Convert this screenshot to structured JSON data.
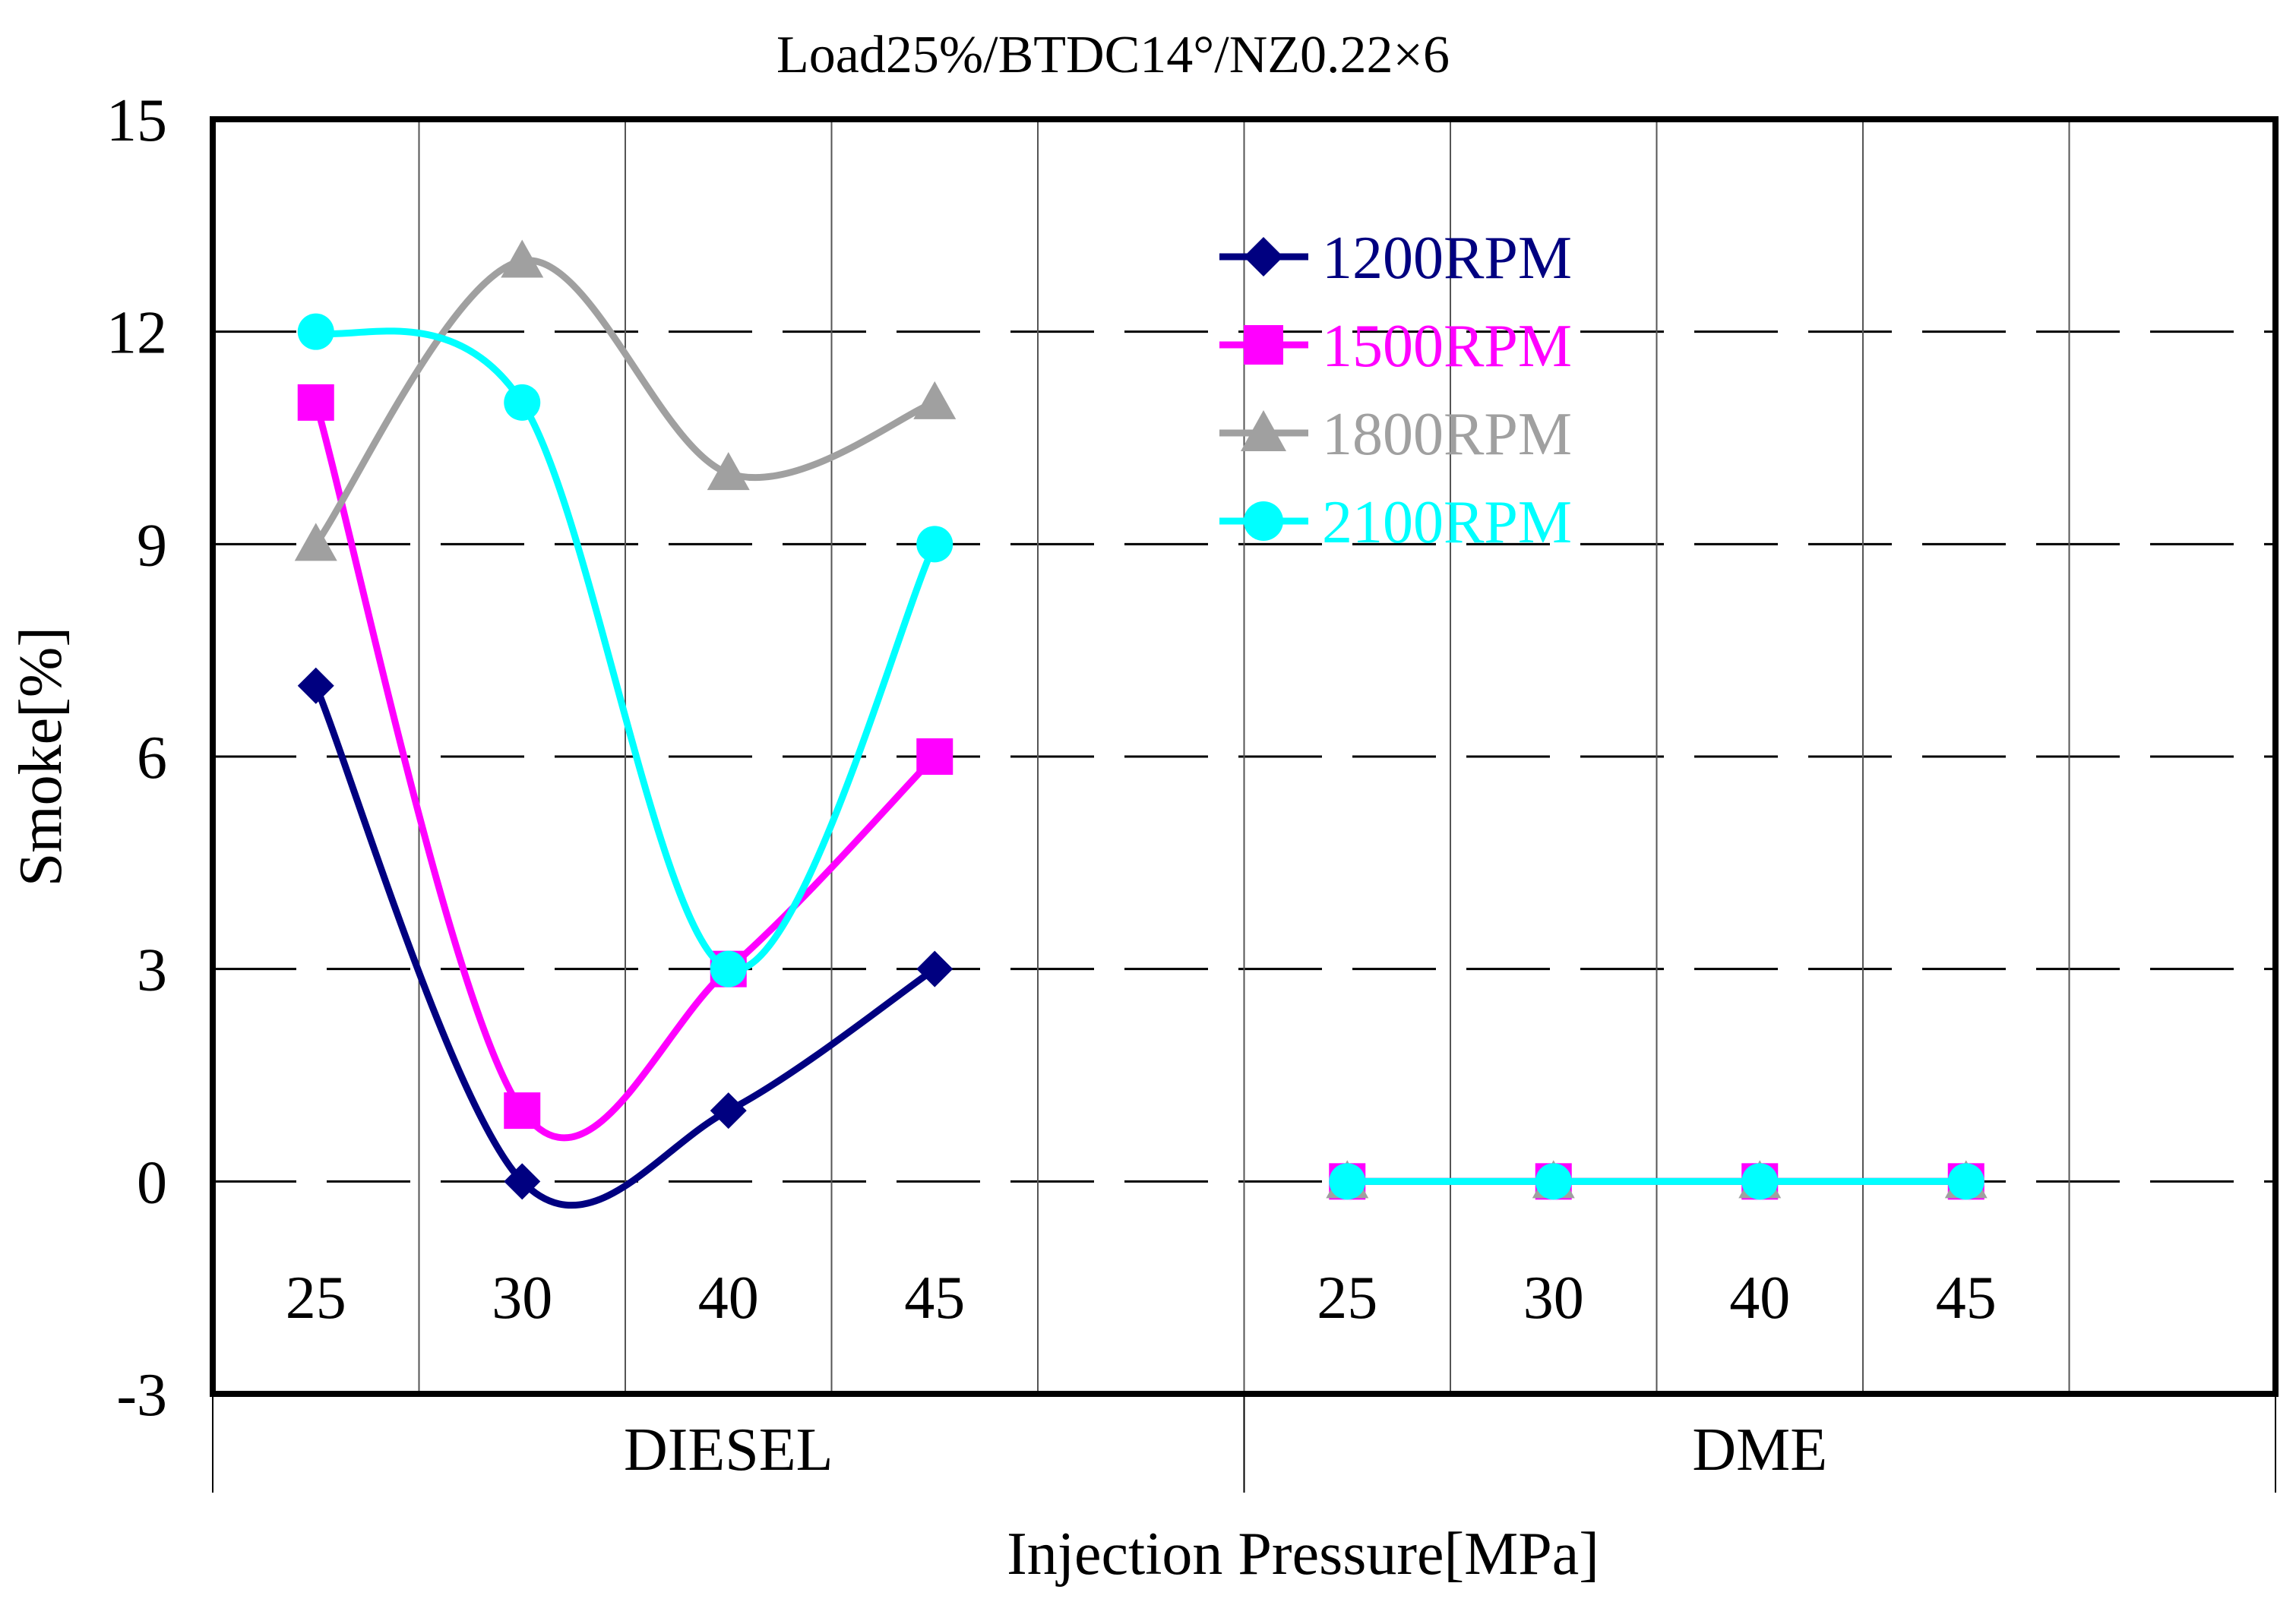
{
  "chart_data": {
    "type": "line",
    "title": "Load25%/BTDC14°/NZ0.22×6",
    "xlabel": "Injection Pressure[MPa]",
    "ylabel": "Smoke[%]",
    "ylim": [
      -3,
      15
    ],
    "yticks": [
      "-3",
      "0",
      "3",
      "6",
      "9",
      "12",
      "15"
    ],
    "groups": [
      {
        "name": "DIESEL",
        "categories": [
          "25",
          "30",
          "40",
          "45"
        ]
      },
      {
        "name": "DME",
        "categories": [
          "25",
          "30",
          "40",
          "45"
        ]
      }
    ],
    "series": [
      {
        "name": "1200RPM",
        "color": "#000080",
        "marker": "diamond",
        "diesel": [
          7,
          0,
          1,
          3
        ],
        "dme": [
          0,
          0,
          0,
          0
        ]
      },
      {
        "name": "1500RPM",
        "color": "#ff00ff",
        "marker": "square",
        "diesel": [
          11,
          1,
          3,
          6
        ],
        "dme": [
          0,
          0,
          0,
          0
        ]
      },
      {
        "name": "1800RPM",
        "color": "#a0a0a0",
        "marker": "triangle",
        "diesel": [
          9,
          13,
          10,
          11
        ],
        "dme": [
          0,
          0,
          0,
          0
        ]
      },
      {
        "name": "2100RPM",
        "color": "#00ffff",
        "marker": "circle",
        "diesel": [
          12,
          11,
          3,
          9
        ],
        "dme": [
          0,
          0,
          0,
          0
        ]
      }
    ],
    "legend_position": "top-center",
    "grid": true
  }
}
